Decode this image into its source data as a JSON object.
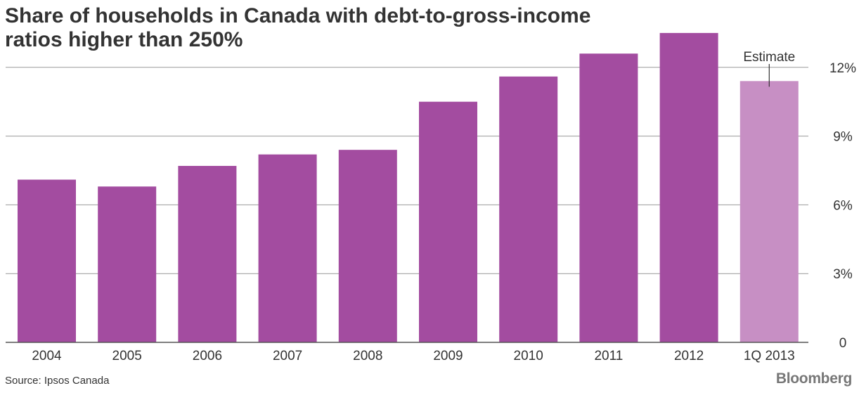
{
  "chart_data": {
    "type": "bar",
    "title": "Share of households in Canada with debt-to-gross-income ratios higher than 250%",
    "categories": [
      "2004",
      "2005",
      "2006",
      "2007",
      "2008",
      "2009",
      "2010",
      "2011",
      "2012",
      "1Q 2013"
    ],
    "values": [
      7.1,
      6.8,
      7.7,
      8.2,
      8.4,
      10.5,
      11.6,
      12.6,
      13.5,
      11.4
    ],
    "estimated": [
      false,
      false,
      false,
      false,
      false,
      false,
      false,
      false,
      false,
      true
    ],
    "ylim": [
      0,
      13.5
    ],
    "yticks": [
      0,
      3,
      6,
      9,
      12
    ],
    "ytick_labels": [
      "0",
      "3%",
      "6%",
      "9%",
      "12%"
    ],
    "grid": true,
    "y_axis_side": "right",
    "annotation": {
      "text": "Estimate",
      "category": "1Q 2013"
    },
    "colors": {
      "bar": "#a34ca0",
      "estimate_bar": "#c78fc4",
      "grid": "#999999",
      "axis": "#555555"
    }
  },
  "source": "Source: Ipsos Canada",
  "brand": "Bloomberg"
}
